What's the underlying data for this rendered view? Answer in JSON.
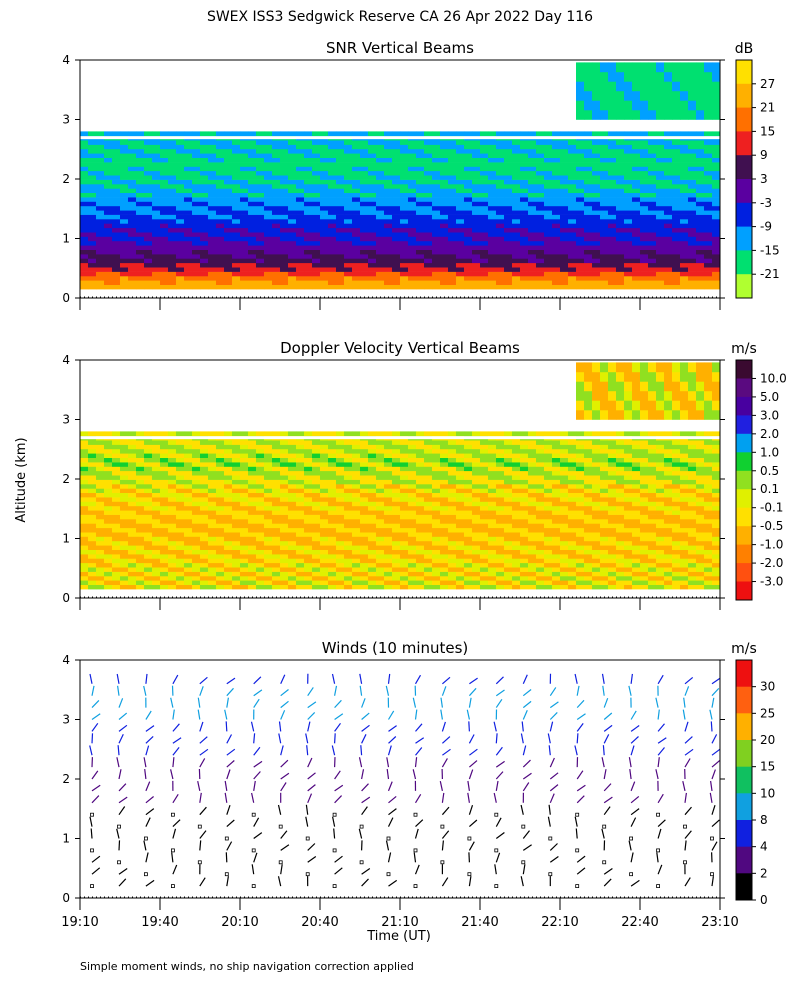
{
  "title": "SWEX ISS3 Sedgwick Reserve CA  26 Apr 2022 Day 116",
  "shared_axis": {
    "ylabel": "Altitude (km)",
    "xlabel": "Time (UT)",
    "y_ticks": [
      "0",
      "1",
      "2",
      "3",
      "4"
    ],
    "x_ticks": [
      "19:10",
      "19:40",
      "20:10",
      "20:40",
      "21:10",
      "21:40",
      "22:10",
      "22:40",
      "23:10"
    ]
  },
  "footnote": "Simple moment winds, no ship navigation correction applied",
  "chart_data": [
    {
      "type": "heatmap",
      "title": "SNR Vertical Beams",
      "xlabel": "Time (UT)",
      "ylabel": "Altitude (km)",
      "xlim": [
        "19:10",
        "23:10"
      ],
      "ylim": [
        0,
        4
      ],
      "colorbar": {
        "unit": "dB",
        "ticks": [
          "27",
          "21",
          "15",
          "9",
          "3",
          "-3",
          "-9",
          "-15",
          "-21"
        ],
        "colors": [
          "#ffe000",
          "#ffb000",
          "#ff7000",
          "#ee2020",
          "#401050",
          "#5a00a0",
          "#0020e0",
          "#00a0ff",
          "#00e070",
          "#b0ff30"
        ]
      },
      "profile": [
        {
          "altitude_km": 0.2,
          "snr_db": 24
        },
        {
          "altitude_km": 0.4,
          "snr_db": 13
        },
        {
          "altitude_km": 0.6,
          "snr_db": 5
        },
        {
          "altitude_km": 0.9,
          "snr_db": -2
        },
        {
          "altitude_km": 1.3,
          "snr_db": -7
        },
        {
          "altitude_km": 1.7,
          "snr_db": -13
        },
        {
          "altitude_km": 2.2,
          "snr_db": -18
        },
        {
          "altitude_km": 2.75,
          "snr_db": -13
        }
      ]
    },
    {
      "type": "heatmap",
      "title": "Doppler Velocity Vertical Beams",
      "xlabel": "Time (UT)",
      "ylabel": "Altitude (km)",
      "xlim": [
        "19:10",
        "23:10"
      ],
      "ylim": [
        0,
        4
      ],
      "colorbar": {
        "unit": "m/s",
        "ticks": [
          "10.0",
          "5.0",
          "3.0",
          "2.0",
          "1.0",
          "0.5",
          "0.1",
          "-0.1",
          "-0.5",
          "-1.0",
          "-2.0",
          "-3.0"
        ],
        "colors": [
          "#3a0a30",
          "#5a0a80",
          "#4800a0",
          "#2020e0",
          "#00a0f0",
          "#10d030",
          "#90e020",
          "#e0f000",
          "#ffe000",
          "#ffb000",
          "#ff8000",
          "#ff5010",
          "#ee1010"
        ]
      },
      "profile": [
        {
          "altitude_km": 0.4,
          "velocity_ms": -0.2
        },
        {
          "altitude_km": 1.2,
          "velocity_ms": -0.6
        },
        {
          "altitude_km": 1.7,
          "velocity_ms": -0.3
        },
        {
          "altitude_km": 2.2,
          "velocity_ms": 0.2
        },
        {
          "altitude_km": 2.7,
          "velocity_ms": -0.1
        }
      ]
    },
    {
      "type": "scatter",
      "title": "Winds (10 minutes)",
      "xlabel": "Time (UT)",
      "ylabel": "Altitude (km)",
      "xlim": [
        "19:10",
        "23:10"
      ],
      "ylim": [
        0,
        4
      ],
      "colorbar": {
        "unit": "m/s",
        "ticks": [
          "30",
          "25",
          "20",
          "15",
          "10",
          "8",
          "4",
          "2",
          "0"
        ],
        "colors": [
          "#ee1010",
          "#ff6010",
          "#ffb000",
          "#80d020",
          "#10c060",
          "#10a0e0",
          "#1020e0",
          "#500880",
          "#000000"
        ]
      },
      "profile": [
        {
          "altitude_km": 0.5,
          "speed_ms": 1.5
        },
        {
          "altitude_km": 1.0,
          "speed_ms": 1.5
        },
        {
          "altitude_km": 1.5,
          "speed_ms": 2
        },
        {
          "altitude_km": 2.0,
          "speed_ms": 3
        },
        {
          "altitude_km": 2.5,
          "speed_ms": 5
        },
        {
          "altitude_km": 3.0,
          "speed_ms": 8
        },
        {
          "altitude_km": 3.5,
          "speed_ms": 8
        },
        {
          "altitude_km": 3.9,
          "speed_ms": 6
        }
      ]
    }
  ]
}
